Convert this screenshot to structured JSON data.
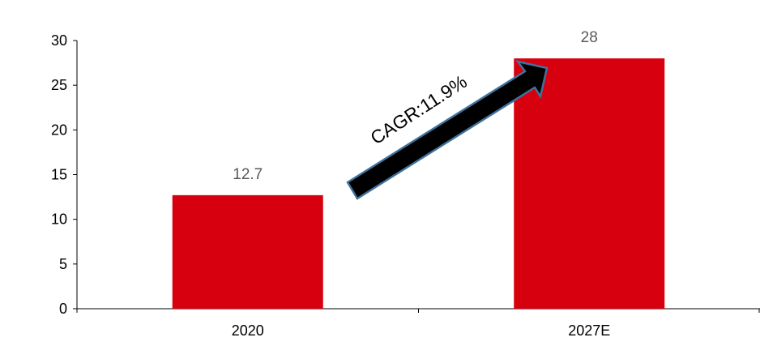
{
  "chart_data": {
    "type": "bar",
    "categories": [
      "2020",
      "2027E"
    ],
    "values": [
      12.7,
      28
    ],
    "data_labels": [
      "12.7",
      "28"
    ],
    "ylim": [
      0,
      30
    ],
    "yticks": [
      "0",
      "5",
      "10",
      "15",
      "20",
      "25",
      "30"
    ],
    "grid": false,
    "bar_color": "#d7000f",
    "annotation": "CAGR:11.9%",
    "xlabel": "",
    "ylabel": "",
    "title": ""
  }
}
